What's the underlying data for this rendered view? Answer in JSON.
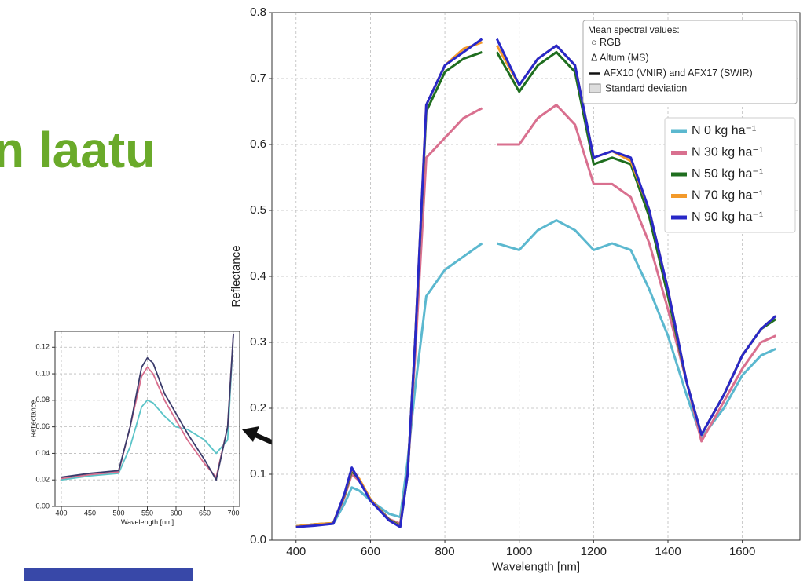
{
  "slide": {
    "title": "n laatu"
  },
  "chart_data": [
    {
      "type": "line",
      "x_label": "Wavelength [nm]",
      "y_label": "Reflectance",
      "x": [
        400,
        450,
        500,
        530,
        550,
        570,
        600,
        650,
        680,
        700,
        720,
        750,
        800,
        850,
        900,
        920,
        940,
        1000,
        1050,
        1100,
        1150,
        1200,
        1250,
        1300,
        1350,
        1400,
        1450,
        1490,
        1550,
        1600,
        1650,
        1690
      ],
      "xlim": [
        335,
        1755
      ],
      "ylim": [
        0,
        0.8
      ],
      "xticks": [
        400,
        600,
        800,
        1000,
        1200,
        1400,
        1600
      ],
      "yticks": [
        {
          "value": 0,
          "label": "0.0"
        },
        0.1,
        0.2,
        0.3,
        0.4,
        0.5,
        0.6,
        0.7,
        0.8
      ],
      "grid": true,
      "legend": "upper right",
      "annotations": [
        "Mean spectral values:",
        "○ RGB",
        "Δ Altum (MS)",
        "AFX10 (VNIR) and AFX17 (SWIR)",
        "Standard deviation"
      ],
      "series": [
        {
          "name": "N 0 kg ha⁻¹",
          "color": "#5bb8cf",
          "values": [
            0.02,
            0.023,
            0.025,
            0.055,
            0.08,
            0.075,
            0.06,
            0.04,
            0.035,
            0.12,
            0.23,
            0.37,
            0.41,
            0.43,
            0.45,
            null,
            0.45,
            0.44,
            0.47,
            0.485,
            0.47,
            0.44,
            0.45,
            0.44,
            0.38,
            0.31,
            0.22,
            0.155,
            0.2,
            0.25,
            0.28,
            0.29
          ]
        },
        {
          "name": "N 30 kg ha⁻¹",
          "color": "#d9708f",
          "values": [
            0.021,
            0.023,
            0.026,
            0.065,
            0.1,
            0.09,
            0.062,
            0.032,
            0.025,
            0.1,
            0.28,
            0.58,
            0.61,
            0.64,
            0.655,
            null,
            0.6,
            0.6,
            0.64,
            0.66,
            0.63,
            0.54,
            0.54,
            0.52,
            0.45,
            0.35,
            0.24,
            0.15,
            0.21,
            0.26,
            0.3,
            0.31
          ]
        },
        {
          "name": "N 50 kg ha⁻¹",
          "color": "#1f6e1f",
          "values": [
            0.021,
            0.024,
            0.026,
            0.068,
            0.105,
            0.092,
            0.062,
            0.031,
            0.022,
            0.1,
            0.3,
            0.65,
            0.71,
            0.73,
            0.74,
            null,
            0.74,
            0.68,
            0.72,
            0.74,
            0.71,
            0.57,
            0.58,
            0.57,
            0.49,
            0.37,
            0.24,
            0.16,
            0.22,
            0.28,
            0.32,
            0.335
          ]
        },
        {
          "name": "N 70 kg ha⁻¹",
          "color": "#f39a2b",
          "values": [
            0.021,
            0.024,
            0.026,
            0.069,
            0.108,
            0.093,
            0.062,
            0.03,
            0.021,
            0.1,
            0.3,
            0.66,
            0.72,
            0.745,
            0.755,
            null,
            0.75,
            0.69,
            0.73,
            0.75,
            0.72,
            0.58,
            0.59,
            0.575,
            0.5,
            0.38,
            0.24,
            0.16,
            0.22,
            0.28,
            0.32,
            0.34
          ]
        },
        {
          "name": "N 90 kg ha⁻¹",
          "color": "#2828c8",
          "values": [
            0.02,
            0.022,
            0.025,
            0.07,
            0.11,
            0.09,
            0.06,
            0.03,
            0.02,
            0.1,
            0.3,
            0.66,
            0.72,
            0.74,
            0.76,
            null,
            0.76,
            0.69,
            0.73,
            0.75,
            0.72,
            0.58,
            0.59,
            0.58,
            0.5,
            0.38,
            0.24,
            0.16,
            0.22,
            0.28,
            0.32,
            0.34
          ]
        }
      ]
    },
    {
      "type": "line",
      "x_label": "Wavelength [nm]",
      "y_label": "Reflectance",
      "x": [
        400,
        450,
        500,
        520,
        540,
        550,
        560,
        580,
        600,
        620,
        650,
        670,
        690,
        700
      ],
      "xlim": [
        389,
        711
      ],
      "ylim": [
        0,
        0.132
      ],
      "xticks": [
        400,
        450,
        500,
        550,
        600,
        650,
        700
      ],
      "yticks": [
        {
          "value": 0,
          "label": "0.00"
        },
        {
          "value": 0.02,
          "label": "0.02"
        },
        {
          "value": 0.04,
          "label": "0.04"
        },
        {
          "value": 0.06,
          "label": "0.06"
        },
        {
          "value": 0.08,
          "label": "0.08"
        },
        {
          "value": 0.1,
          "label": "0.10"
        },
        {
          "value": 0.12,
          "label": "0.12"
        }
      ],
      "grid": true,
      "series": [
        {
          "color": "#5bc4c8",
          "values": [
            0.02,
            0.023,
            0.025,
            0.045,
            0.075,
            0.08,
            0.078,
            0.068,
            0.06,
            0.058,
            0.05,
            0.04,
            0.05,
            0.13
          ]
        },
        {
          "color": "#d9708f",
          "values": [
            0.021,
            0.024,
            0.026,
            0.06,
            0.098,
            0.105,
            0.1,
            0.08,
            0.065,
            0.05,
            0.032,
            0.022,
            0.06,
            0.13
          ]
        },
        {
          "color": "#3b3b6b",
          "values": [
            0.022,
            0.025,
            0.027,
            0.06,
            0.105,
            0.112,
            0.108,
            0.085,
            0.07,
            0.055,
            0.035,
            0.02,
            0.06,
            0.13
          ]
        }
      ]
    }
  ]
}
